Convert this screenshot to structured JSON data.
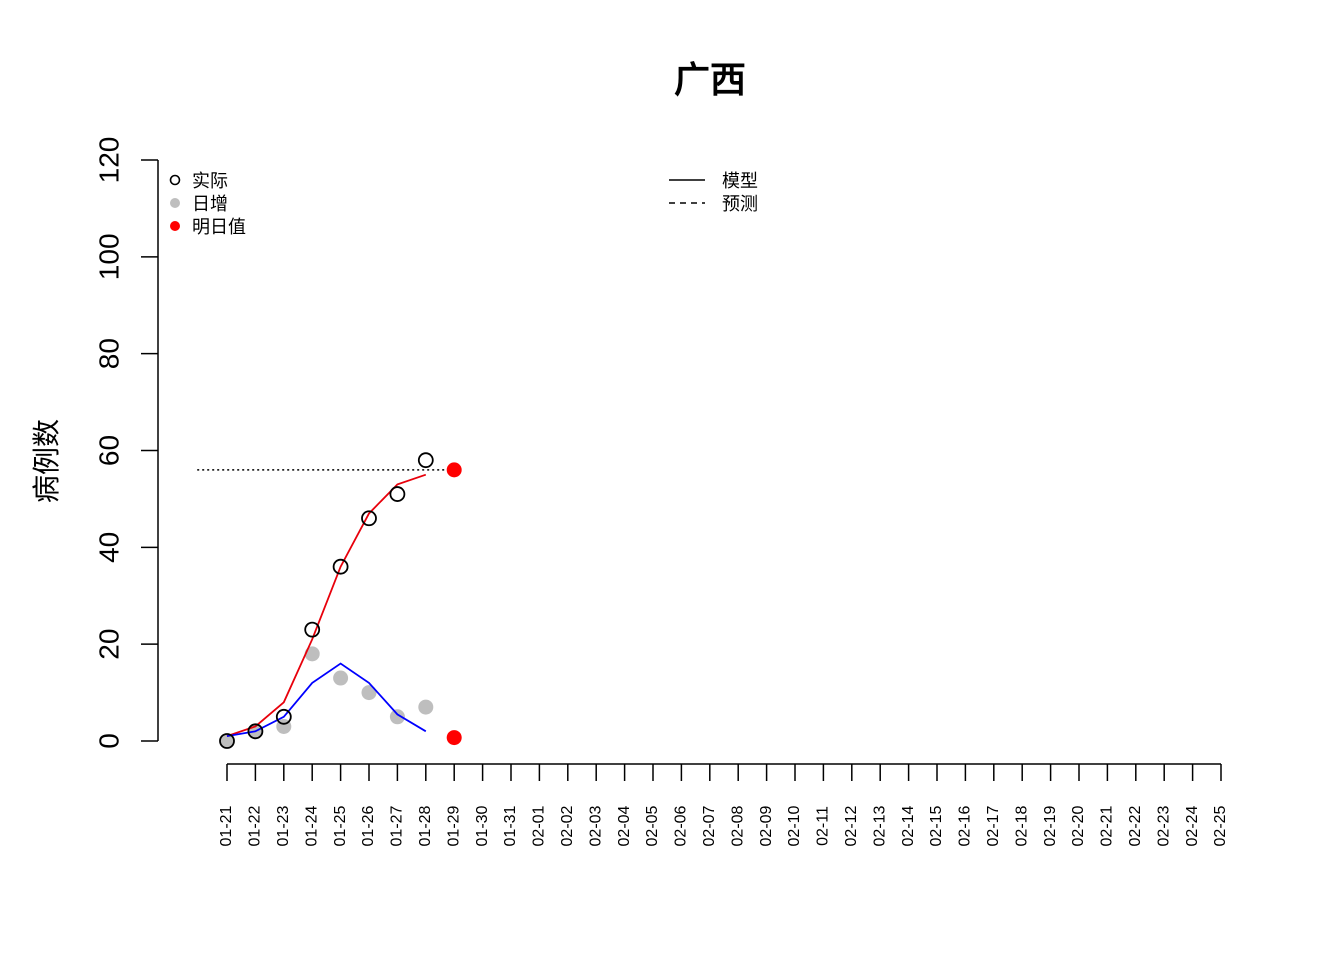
{
  "chart_data": {
    "type": "line",
    "title": "广西",
    "xlabel": "",
    "ylabel": "病例数",
    "ylim": [
      0,
      120
    ],
    "yticks": [
      0,
      20,
      40,
      60,
      80,
      100,
      120
    ],
    "categories": [
      "01-21",
      "01-22",
      "01-23",
      "01-24",
      "01-25",
      "01-26",
      "01-27",
      "01-28",
      "01-29",
      "01-30",
      "01-31",
      "02-01",
      "02-02",
      "02-03",
      "02-04",
      "02-05",
      "02-06",
      "02-07",
      "02-08",
      "02-09",
      "02-10",
      "02-11",
      "02-12",
      "02-13",
      "02-14",
      "02-15",
      "02-16",
      "02-17",
      "02-18",
      "02-19",
      "02-20",
      "02-21",
      "02-22",
      "02-23",
      "02-24",
      "02-25"
    ],
    "actual": {
      "label": "实际",
      "x": [
        "01-21",
        "01-22",
        "01-23",
        "01-24",
        "01-25",
        "01-26",
        "01-27",
        "01-28"
      ],
      "values": [
        0,
        2,
        5,
        23,
        36,
        46,
        51,
        58
      ],
      "color": "#000000"
    },
    "daily": {
      "label": "日增",
      "x": [
        "01-21",
        "01-22",
        "01-23",
        "01-24",
        "01-25",
        "01-26",
        "01-27",
        "01-28"
      ],
      "values": [
        0,
        2,
        3,
        18,
        13,
        10,
        5,
        7
      ],
      "color": "#bebebe"
    },
    "next_day": {
      "label": "明日值",
      "x": [
        "01-29",
        "01-29"
      ],
      "values": [
        56,
        0.7
      ],
      "color": "#ff0000"
    },
    "model_cumulative": {
      "x": [
        "01-21",
        "01-22",
        "01-23",
        "01-24",
        "01-25",
        "01-26",
        "01-27",
        "01-28"
      ],
      "values": [
        1,
        3,
        8,
        21,
        36,
        47,
        53,
        55
      ],
      "color": "#e8000b"
    },
    "model_daily": {
      "x": [
        "01-21",
        "01-22",
        "01-23",
        "01-24",
        "01-25",
        "01-26",
        "01-27",
        "01-28"
      ],
      "values": [
        1,
        2,
        5,
        12,
        16,
        12,
        5.5,
        2
      ],
      "color": "#0000ff"
    },
    "prediction_line": {
      "value": 56,
      "x_range": [
        "01-20",
        "01-29"
      ],
      "color": "#000000"
    },
    "legend_markers": [
      {
        "label": "实际",
        "marker": "open-circle",
        "color": "#000000"
      },
      {
        "label": "日增",
        "marker": "filled-circle",
        "color": "#bebebe"
      },
      {
        "label": "明日值",
        "marker": "filled-circle",
        "color": "#ff0000"
      }
    ],
    "legend_lines": [
      {
        "label": "模型",
        "style": "solid"
      },
      {
        "label": "预测",
        "style": "dashed"
      }
    ],
    "legend_placement": [
      "top-left",
      "top-center"
    ],
    "grid": false
  }
}
